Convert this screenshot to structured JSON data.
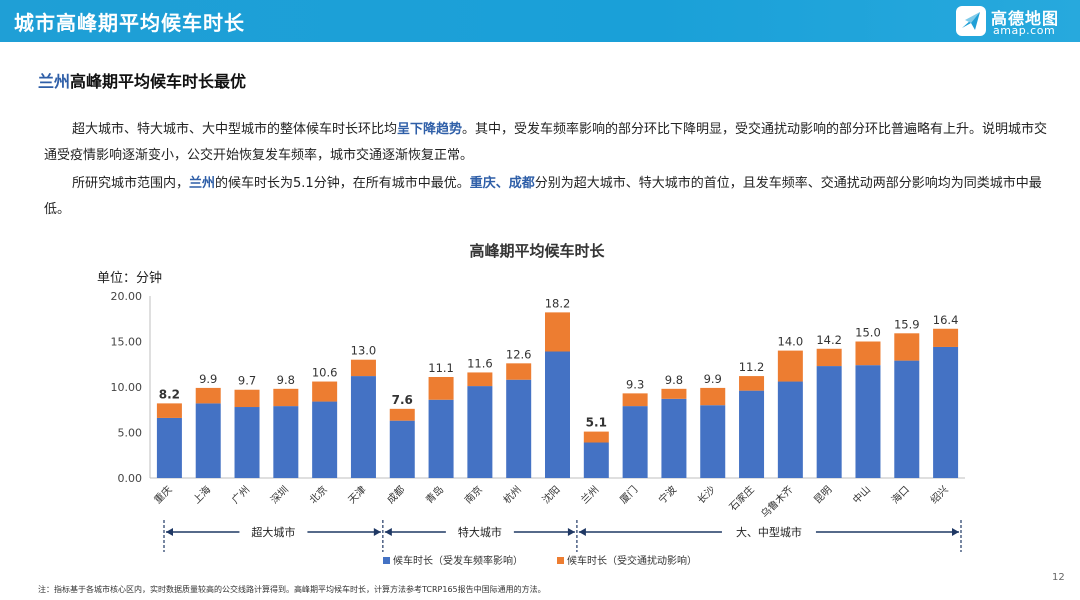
{
  "header": {
    "title": "城市高峰期平均候车时长"
  },
  "logo": {
    "name": "高德地图",
    "url": "amap.com"
  },
  "subtitle": {
    "highlight": "兰州",
    "rest": "高峰期平均候车时长最优"
  },
  "paragraph1": {
    "before": "超大城市、特大城市、大中型城市的整体候车时长环比均",
    "highlight": "呈下降趋势",
    "after": "。其中，受发车频率影响的部分环比下降明显，受交通扰动影响的部分环比普遍略有上升。说明城市交通受疫情影响逐渐变小，公交开始恢复发车频率，城市交通逐渐恢复正常。"
  },
  "paragraph2": {
    "p1": "所研究城市范围内，",
    "h1": "兰州",
    "p2": "的候车时长为5.1分钟，在所有城市中最优。",
    "h2": "重庆、成都",
    "p3": "分别为超大城市、特大城市的首位，且发车频率、交通扰动两部分影响均为同类城市中最低。"
  },
  "footnote": "注：指标基于各城市核心区内，实时数据质量较高的公交线路计算得到。高峰期平均候车时长，计算方法参考TCRP165报告中国际通用的方法。",
  "page_number": "12",
  "colors": {
    "blue": "#4472c4",
    "orange": "#ed7d31",
    "brand": "#2f5fa8"
  },
  "chart_data": {
    "type": "bar",
    "stacked": true,
    "title": "高峰期平均候车时长",
    "unit_label": "单位：分钟",
    "ylim": [
      0,
      20
    ],
    "yticks": [
      "0.00",
      "5.00",
      "10.00",
      "15.00",
      "20.00"
    ],
    "categories": [
      "重庆",
      "上海",
      "广州",
      "深圳",
      "北京",
      "天津",
      "成都",
      "青岛",
      "南京",
      "杭州",
      "沈阳",
      "兰州",
      "厦门",
      "宁波",
      "长沙",
      "石家庄",
      "乌鲁木齐",
      "昆明",
      "中山",
      "海口",
      "绍兴"
    ],
    "series": [
      {
        "name": "候车时长（受发车频率影响）",
        "color": "#4472c4",
        "values": [
          6.6,
          8.2,
          7.8,
          7.9,
          8.4,
          11.2,
          6.3,
          8.6,
          10.1,
          10.8,
          13.9,
          3.9,
          7.9,
          8.7,
          8.0,
          9.6,
          10.6,
          12.3,
          12.4,
          12.9,
          14.4
        ]
      },
      {
        "name": "候车时长（受交通扰动影响）",
        "color": "#ed7d31",
        "values": [
          1.6,
          1.7,
          1.9,
          1.9,
          2.2,
          1.8,
          1.3,
          2.5,
          1.5,
          1.8,
          4.3,
          1.2,
          1.4,
          1.1,
          1.9,
          1.6,
          3.4,
          1.9,
          2.6,
          3.0,
          2.0
        ]
      }
    ],
    "totals": [
      "8.2",
      "9.9",
      "9.7",
      "9.8",
      "10.6",
      "13.0",
      "7.6",
      "11.1",
      "11.6",
      "12.6",
      "18.2",
      "5.1",
      "9.3",
      "9.8",
      "9.9",
      "11.2",
      "14.0",
      "14.2",
      "15.0",
      "15.9",
      "16.4"
    ],
    "bold_totals": [
      0,
      6,
      11
    ],
    "groups": [
      {
        "label": "超大城市",
        "start": 0,
        "end": 5
      },
      {
        "label": "特大城市",
        "start": 6,
        "end": 10
      },
      {
        "label": "大、中型城市",
        "start": 11,
        "end": 20
      }
    ]
  }
}
